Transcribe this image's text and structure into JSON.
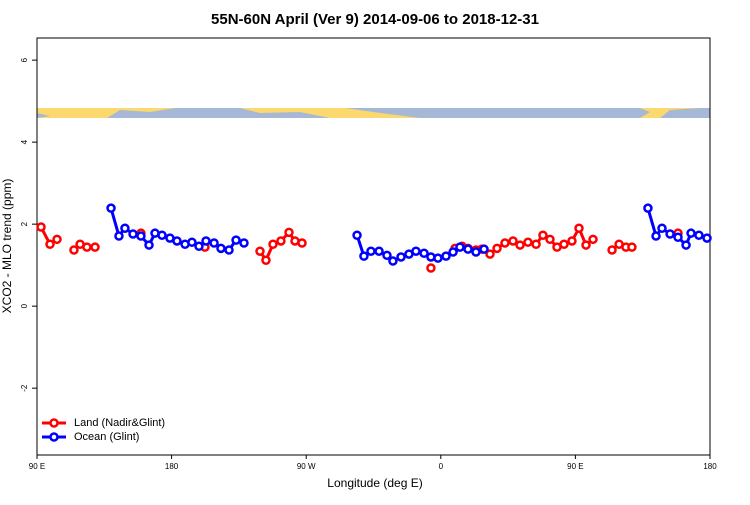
{
  "chart_data": {
    "type": "line",
    "title": "55N-60N April (Ver 9)   2014-09-06 to 2018-12-31",
    "xlabel": "Longitude (deg E)",
    "ylabel": "XCO2 - MLO trend (ppm)",
    "xlim": [
      90,
      540
    ],
    "xticks": [
      {
        "value": 90,
        "label": "90 E"
      },
      {
        "value": 180,
        "label": "180"
      },
      {
        "value": 270,
        "label": "90 W"
      },
      {
        "value": 360,
        "label": "0"
      },
      {
        "value": 450,
        "label": "90 E"
      },
      {
        "value": 540,
        "label": "180"
      }
    ],
    "ylim": [
      -3.63,
      6.54
    ],
    "yticks": [
      -2,
      0,
      2,
      4,
      6
    ],
    "legend": "bottom-left",
    "series": [
      {
        "name": "Land (Nadir&Glint)",
        "color": "#ff0000",
        "x": [
          92.7,
          98.7,
          103.4,
          null,
          114.7,
          118.8,
          123.4,
          128.8,
          null,
          159.5,
          null,
          202.3,
          null,
          239.1,
          243.1,
          247.8,
          253.1,
          258.5,
          262.5,
          267.2,
          null,
          353.4,
          null,
          369.5,
          374.2,
          378.2,
          383.5,
          387.5,
          392.9,
          397.6,
          402.9,
          408.3,
          413.0,
          418.3,
          423.7,
          428.3,
          433.0,
          437.7,
          442.4,
          447.7,
          452.4,
          457.1,
          461.8,
          null,
          474.5,
          479.2,
          483.8,
          487.8,
          null,
          518.6
        ],
        "values": [
          1.93,
          1.51,
          1.63,
          null,
          1.37,
          1.51,
          1.44,
          1.44,
          null,
          1.78,
          null,
          1.44,
          null,
          1.34,
          1.12,
          1.51,
          1.59,
          1.8,
          1.59,
          1.54,
          null,
          0.93,
          null,
          1.41,
          1.46,
          1.41,
          1.37,
          1.39,
          1.27,
          1.41,
          1.54,
          1.59,
          1.49,
          1.56,
          1.51,
          1.73,
          1.63,
          1.44,
          1.51,
          1.59,
          1.9,
          1.49,
          1.63,
          null,
          1.37,
          1.51,
          1.44,
          1.44,
          null,
          1.78
        ]
      },
      {
        "name": "Ocean (Glint)",
        "color": "#0000ff",
        "x": [
          139.5,
          144.8,
          148.8,
          154.2,
          159.5,
          164.9,
          168.9,
          173.6,
          178.9,
          183.6,
          189.0,
          193.6,
          198.3,
          203.0,
          208.4,
          213.0,
          218.4,
          223.1,
          228.4,
          null,
          304.0,
          308.6,
          313.3,
          318.7,
          324.0,
          328.0,
          333.4,
          338.7,
          343.4,
          348.8,
          353.4,
          358.1,
          363.5,
          368.2,
          372.8,
          378.2,
          383.5,
          388.9,
          null,
          498.5,
          503.9,
          507.9,
          513.3,
          518.6,
          524.0,
          527.3,
          532.6,
          538.0
        ],
        "values": [
          2.39,
          1.71,
          1.9,
          1.76,
          1.71,
          1.49,
          1.78,
          1.73,
          1.66,
          1.59,
          1.51,
          1.56,
          1.46,
          1.59,
          1.54,
          1.41,
          1.37,
          1.61,
          1.54,
          null,
          1.73,
          1.22,
          1.34,
          1.34,
          1.24,
          1.1,
          1.2,
          1.27,
          1.34,
          1.29,
          1.2,
          1.17,
          1.22,
          1.32,
          1.44,
          1.39,
          1.32,
          1.39,
          null,
          2.39,
          1.71,
          1.9,
          1.76,
          1.68,
          1.49,
          1.78,
          1.73,
          1.66
        ]
      }
    ]
  }
}
